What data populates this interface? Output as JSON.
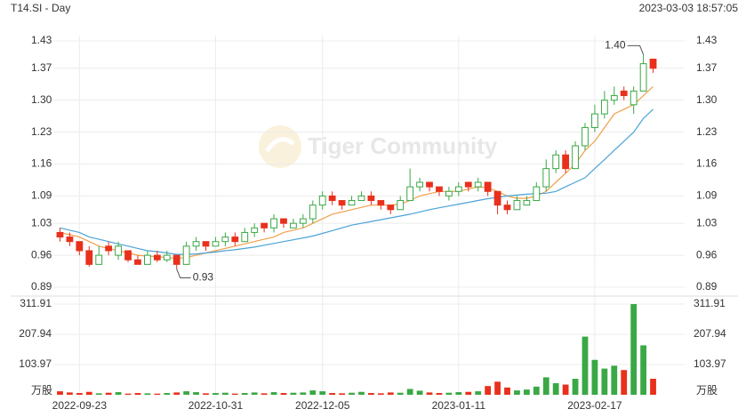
{
  "header": {
    "symbol": "T14.SI - Day",
    "timestamp": "2023-03-03 18:57:05"
  },
  "watermark": "Tiger Community",
  "chart_data": {
    "type": "candlestick",
    "categories": [
      null,
      null,
      "2022-09-23",
      null,
      null,
      null,
      null,
      null,
      null,
      null,
      null,
      null,
      null,
      null,
      null,
      null,
      "2022-10-31",
      null,
      null,
      null,
      null,
      null,
      null,
      null,
      null,
      null,
      null,
      "2022-12-05",
      null,
      null,
      null,
      null,
      null,
      null,
      null,
      null,
      null,
      null,
      null,
      null,
      null,
      "2023-01-11",
      null,
      null,
      null,
      null,
      null,
      null,
      null,
      null,
      null,
      null,
      null,
      null,
      null,
      "2023-02-17",
      null,
      null,
      null,
      null,
      null,
      null
    ],
    "open": [
      1.01,
      1.0,
      0.99,
      0.97,
      0.94,
      0.98,
      0.96,
      0.97,
      0.95,
      0.94,
      0.96,
      0.95,
      0.96,
      0.94,
      0.98,
      0.99,
      0.98,
      0.99,
      1.0,
      0.99,
      1.01,
      1.03,
      1.02,
      1.04,
      1.02,
      1.03,
      1.04,
      1.07,
      1.09,
      1.08,
      1.07,
      1.08,
      1.09,
      1.08,
      1.07,
      1.06,
      1.08,
      1.11,
      1.12,
      1.11,
      1.09,
      1.1,
      1.12,
      1.11,
      1.12,
      1.1,
      1.07,
      1.06,
      1.07,
      1.08,
      1.11,
      1.15,
      1.18,
      1.15,
      1.2,
      1.24,
      1.27,
      1.3,
      1.32,
      1.29,
      1.32,
      1.39
    ],
    "high": [
      1.02,
      1.01,
      0.99,
      0.98,
      0.98,
      0.99,
      0.99,
      0.97,
      0.96,
      0.97,
      0.97,
      0.97,
      0.96,
      0.99,
      1.0,
      0.99,
      1.0,
      1.01,
      1.01,
      1.02,
      1.03,
      1.03,
      1.05,
      1.04,
      1.04,
      1.05,
      1.08,
      1.1,
      1.1,
      1.08,
      1.09,
      1.1,
      1.1,
      1.08,
      1.07,
      1.09,
      1.15,
      1.13,
      1.12,
      1.11,
      1.11,
      1.12,
      1.12,
      1.13,
      1.12,
      1.1,
      1.08,
      1.09,
      1.09,
      1.12,
      1.17,
      1.19,
      1.19,
      1.21,
      1.25,
      1.29,
      1.32,
      1.33,
      1.33,
      1.33,
      1.4,
      1.39
    ],
    "low": [
      0.99,
      0.98,
      0.96,
      0.935,
      0.94,
      0.96,
      0.95,
      0.945,
      0.94,
      0.94,
      0.945,
      0.945,
      0.93,
      0.94,
      0.97,
      0.97,
      0.98,
      0.98,
      0.98,
      0.99,
      1.0,
      1.01,
      1.01,
      1.02,
      1.02,
      1.02,
      1.03,
      1.06,
      1.07,
      1.06,
      1.07,
      1.08,
      1.07,
      1.06,
      1.05,
      1.06,
      1.08,
      1.1,
      1.1,
      1.09,
      1.08,
      1.09,
      1.1,
      1.1,
      1.09,
      1.05,
      1.05,
      1.06,
      1.07,
      1.08,
      1.1,
      1.14,
      1.14,
      1.15,
      1.19,
      1.23,
      1.26,
      1.29,
      1.3,
      1.27,
      1.32,
      1.36
    ],
    "close": [
      1.0,
      0.99,
      0.97,
      0.94,
      0.96,
      0.97,
      0.98,
      0.95,
      0.94,
      0.96,
      0.95,
      0.96,
      0.94,
      0.98,
      0.99,
      0.98,
      0.99,
      1.0,
      0.99,
      1.01,
      1.02,
      1.02,
      1.04,
      1.03,
      1.03,
      1.04,
      1.07,
      1.09,
      1.08,
      1.07,
      1.08,
      1.09,
      1.08,
      1.07,
      1.06,
      1.08,
      1.11,
      1.12,
      1.11,
      1.1,
      1.1,
      1.11,
      1.11,
      1.12,
      1.1,
      1.07,
      1.06,
      1.08,
      1.08,
      1.11,
      1.15,
      1.18,
      1.15,
      1.2,
      1.24,
      1.27,
      1.3,
      1.31,
      1.31,
      1.32,
      1.38,
      1.37
    ],
    "up_color": "#3aa845",
    "down_color": "#e8301c",
    "ma": [
      {
        "color": "#f0a04b",
        "values": [
          1.01,
          1.005,
          1.0,
          0.99,
          0.98,
          0.975,
          0.97,
          0.965,
          0.96,
          0.958,
          0.957,
          0.955,
          0.953,
          0.955,
          0.96,
          0.965,
          0.97,
          0.975,
          0.98,
          0.985,
          0.99,
          0.995,
          1.0,
          1.01,
          1.015,
          1.02,
          1.03,
          1.04,
          1.05,
          1.055,
          1.06,
          1.065,
          1.07,
          1.07,
          1.07,
          1.072,
          1.08,
          1.09,
          1.095,
          1.1,
          1.1,
          1.1,
          1.105,
          1.11,
          1.108,
          1.1,
          1.09,
          1.085,
          1.085,
          1.09,
          1.1,
          1.12,
          1.14,
          1.16,
          1.19,
          1.21,
          1.24,
          1.27,
          1.28,
          1.29,
          1.31,
          1.33
        ]
      },
      {
        "color": "#4aa3d8",
        "values": [
          1.02,
          1.015,
          1.01,
          1.0,
          0.995,
          0.99,
          0.985,
          0.98,
          0.975,
          0.97,
          0.968,
          0.965,
          0.962,
          0.962,
          0.963,
          0.965,
          0.967,
          0.97,
          0.972,
          0.975,
          0.978,
          0.982,
          0.986,
          0.99,
          0.994,
          0.998,
          1.002,
          1.008,
          1.014,
          1.02,
          1.026,
          1.03,
          1.034,
          1.038,
          1.042,
          1.046,
          1.05,
          1.055,
          1.06,
          1.064,
          1.068,
          1.072,
          1.076,
          1.08,
          1.084,
          1.087,
          1.09,
          1.092,
          1.094,
          1.095,
          1.096,
          1.1,
          1.11,
          1.12,
          1.13,
          1.15,
          1.17,
          1.19,
          1.21,
          1.23,
          1.26,
          1.28
        ]
      }
    ],
    "ylim": [
      0.89,
      1.43
    ],
    "yticks": [
      {
        "value": 1.43,
        "label": "1.43"
      },
      {
        "value": 1.37,
        "label": "1.37"
      },
      {
        "value": 1.3,
        "label": "1.30"
      },
      {
        "value": 1.23,
        "label": "1.23"
      },
      {
        "value": 1.16,
        "label": "1.16"
      },
      {
        "value": 1.09,
        "label": "1.09"
      },
      {
        "value": 1.03,
        "label": "1.03"
      },
      {
        "value": 0.96,
        "label": "0.96"
      },
      {
        "value": 0.89,
        "label": "0.89"
      }
    ],
    "max_label": {
      "value": 1.4,
      "label": "1.40"
    },
    "min_label": {
      "value": 0.93,
      "label": "0.93"
    },
    "volume": {
      "unit": "万股",
      "ylim": [
        0,
        311.91
      ],
      "yticks": [
        103.97,
        207.94,
        311.91
      ],
      "values": [
        12,
        8,
        6,
        10,
        5,
        7,
        9,
        4,
        6,
        5,
        4,
        6,
        8,
        12,
        9,
        5,
        6,
        7,
        4,
        6,
        8,
        5,
        9,
        6,
        7,
        8,
        15,
        12,
        6,
        5,
        7,
        10,
        6,
        5,
        8,
        7,
        20,
        14,
        8,
        6,
        7,
        9,
        10,
        12,
        30,
        45,
        25,
        15,
        18,
        28,
        60,
        40,
        35,
        55,
        200,
        120,
        90,
        100,
        85,
        311.91,
        170,
        55
      ]
    }
  }
}
